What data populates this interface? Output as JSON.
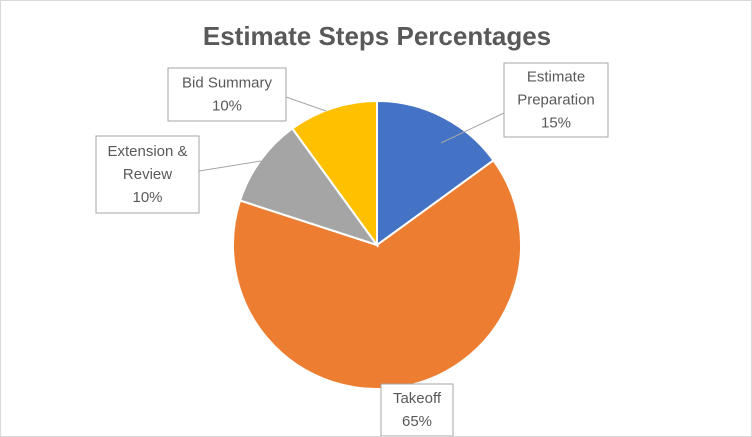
{
  "chart_data": {
    "type": "pie",
    "title": "Estimate Steps Percentages",
    "slices": [
      {
        "label_lines": [
          "Estimate",
          "Preparation"
        ],
        "value": 15,
        "value_label": "15%",
        "color": "#4472C4"
      },
      {
        "label_lines": [
          "Takeoff"
        ],
        "value": 65,
        "value_label": "65%",
        "color": "#ED7D31"
      },
      {
        "label_lines": [
          "Extension &",
          "Review"
        ],
        "value": 10,
        "value_label": "10%",
        "color": "#A5A5A5"
      },
      {
        "label_lines": [
          "Bid Summary"
        ],
        "value": 10,
        "value_label": "10%",
        "color": "#FFC000"
      }
    ]
  }
}
